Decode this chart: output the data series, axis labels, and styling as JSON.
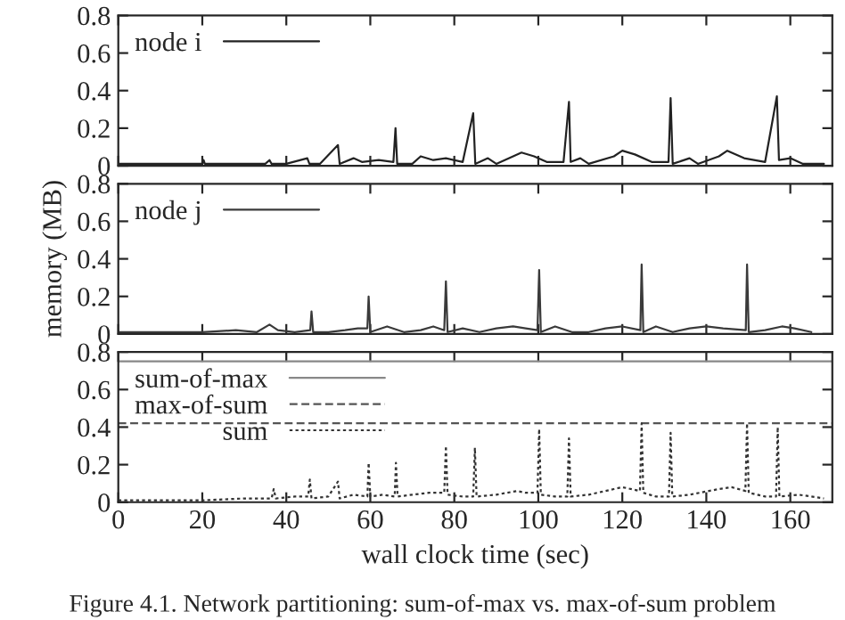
{
  "chart_data": [
    {
      "type": "line",
      "xlim": [
        0,
        170
      ],
      "ylim": [
        0,
        0.8
      ],
      "xticks": [
        0,
        20,
        40,
        60,
        80,
        100,
        120,
        140,
        160
      ],
      "yticks": [
        0,
        0.2,
        0.4,
        0.6,
        0.8
      ],
      "tick_labels": "y",
      "legend": "top left",
      "grid": false,
      "series": [
        {
          "name": "node i",
          "color": "#222222",
          "line_style": "solid",
          "x": [
            0,
            20,
            20.3,
            20.6,
            35,
            36,
            36.5,
            40,
            45,
            45.5,
            48,
            52.3,
            52.7,
            56,
            58,
            62,
            65.5,
            66,
            66.4,
            70,
            72,
            75,
            78,
            82,
            84.5,
            85,
            88,
            90,
            94,
            96,
            99,
            102,
            106,
            107.3,
            107.7,
            110,
            112,
            118,
            120,
            123,
            127,
            131,
            131.5,
            132,
            136,
            138,
            143,
            145,
            149,
            154,
            156.8,
            157.3,
            160,
            163,
            168
          ],
          "values": [
            0.01,
            0.01,
            0.03,
            0.01,
            0.01,
            0.03,
            0.01,
            0.01,
            0.04,
            0.01,
            0.01,
            0.11,
            0.01,
            0.04,
            0.02,
            0.03,
            0.02,
            0.2,
            0.01,
            0.01,
            0.05,
            0.03,
            0.04,
            0.02,
            0.28,
            0.01,
            0.04,
            0.01,
            0.05,
            0.07,
            0.05,
            0.02,
            0.02,
            0.34,
            0.02,
            0.04,
            0.01,
            0.05,
            0.08,
            0.06,
            0.02,
            0.02,
            0.36,
            0.01,
            0.04,
            0.01,
            0.05,
            0.08,
            0.04,
            0.02,
            0.37,
            0.03,
            0.04,
            0.01,
            0.01
          ]
        }
      ]
    },
    {
      "type": "line",
      "ylabel": "memory (MB)",
      "xlim": [
        0,
        170
      ],
      "ylim": [
        0,
        0.8
      ],
      "xticks": [
        0,
        20,
        40,
        60,
        80,
        100,
        120,
        140,
        160
      ],
      "yticks": [
        0,
        0.2,
        0.4,
        0.6,
        0.8
      ],
      "tick_labels": "y",
      "legend": "top left",
      "grid": false,
      "series": [
        {
          "name": "node j",
          "color": "#3a3a3a",
          "line_style": "solid",
          "x": [
            0,
            20,
            28,
            33,
            36,
            38,
            42,
            45.7,
            46,
            46.4,
            50,
            54,
            57,
            59.3,
            59.6,
            60,
            64,
            68,
            72,
            75,
            77.6,
            78,
            78.4,
            82,
            86,
            90,
            94,
            97,
            99.8,
            100.2,
            100.6,
            104,
            108,
            112,
            116,
            120,
            124.3,
            124.6,
            125,
            128,
            132,
            136,
            140,
            144,
            149.4,
            149.7,
            150.1,
            154,
            158,
            161,
            165
          ],
          "values": [
            0.01,
            0.01,
            0.02,
            0.01,
            0.05,
            0.02,
            0.01,
            0.02,
            0.12,
            0.01,
            0.01,
            0.02,
            0.03,
            0.03,
            0.2,
            0.01,
            0.04,
            0.01,
            0.02,
            0.04,
            0.02,
            0.28,
            0.01,
            0.03,
            0.01,
            0.03,
            0.04,
            0.03,
            0.02,
            0.34,
            0.01,
            0.04,
            0.01,
            0.01,
            0.03,
            0.04,
            0.02,
            0.37,
            0.01,
            0.04,
            0.01,
            0.03,
            0.04,
            0.03,
            0.02,
            0.37,
            0.01,
            0.02,
            0.04,
            0.03,
            0.01
          ]
        }
      ]
    },
    {
      "type": "line",
      "xlabel": "wall clock time (sec)",
      "xlim": [
        0,
        170
      ],
      "ylim": [
        0,
        0.8
      ],
      "xticks": [
        0,
        20,
        40,
        60,
        80,
        100,
        120,
        140,
        160
      ],
      "yticks": [
        0,
        0.2,
        0.4,
        0.6,
        0.8
      ],
      "legend": "top left",
      "grid": false,
      "annotations": [
        "Figure 4.1. Network partitioning: sum-of-max vs. max-of-sum problem"
      ],
      "series": [
        {
          "name": "sum-of-max",
          "color": "#888888",
          "line_style": "solid",
          "x": [
            0,
            170
          ],
          "values": [
            0.75,
            0.75
          ]
        },
        {
          "name": "max-of-sum",
          "color": "#555555",
          "line_style": "dashed",
          "x": [
            0,
            170
          ],
          "values": [
            0.42,
            0.42
          ]
        },
        {
          "name": "sum",
          "color": "#333333",
          "line_style": "dotted",
          "x": [
            0,
            20,
            30,
            36.5,
            37,
            37.5,
            42,
            45.2,
            45.6,
            46,
            50,
            52.3,
            52.7,
            56,
            59.3,
            59.6,
            60,
            63,
            65.8,
            66.1,
            66.5,
            70,
            74,
            77.6,
            78,
            78.4,
            82,
            84.5,
            84.9,
            85.3,
            90,
            95,
            97,
            99.8,
            100.2,
            100.6,
            104,
            106.9,
            107.3,
            107.7,
            112,
            118,
            120,
            124.2,
            124.6,
            125,
            128,
            131.1,
            131.5,
            131.9,
            136,
            143,
            146,
            149.3,
            149.7,
            150.1,
            154,
            156.6,
            157,
            157.4,
            162,
            168
          ],
          "values": [
            0.01,
            0.01,
            0.02,
            0.02,
            0.07,
            0.02,
            0.03,
            0.03,
            0.12,
            0.02,
            0.03,
            0.11,
            0.02,
            0.04,
            0.03,
            0.21,
            0.03,
            0.04,
            0.03,
            0.21,
            0.03,
            0.04,
            0.05,
            0.05,
            0.3,
            0.04,
            0.03,
            0.03,
            0.29,
            0.03,
            0.04,
            0.06,
            0.05,
            0.05,
            0.39,
            0.04,
            0.03,
            0.03,
            0.34,
            0.03,
            0.04,
            0.07,
            0.08,
            0.06,
            0.42,
            0.05,
            0.03,
            0.03,
            0.37,
            0.03,
            0.04,
            0.07,
            0.08,
            0.06,
            0.42,
            0.05,
            0.03,
            0.03,
            0.4,
            0.03,
            0.04,
            0.02
          ]
        }
      ]
    }
  ]
}
